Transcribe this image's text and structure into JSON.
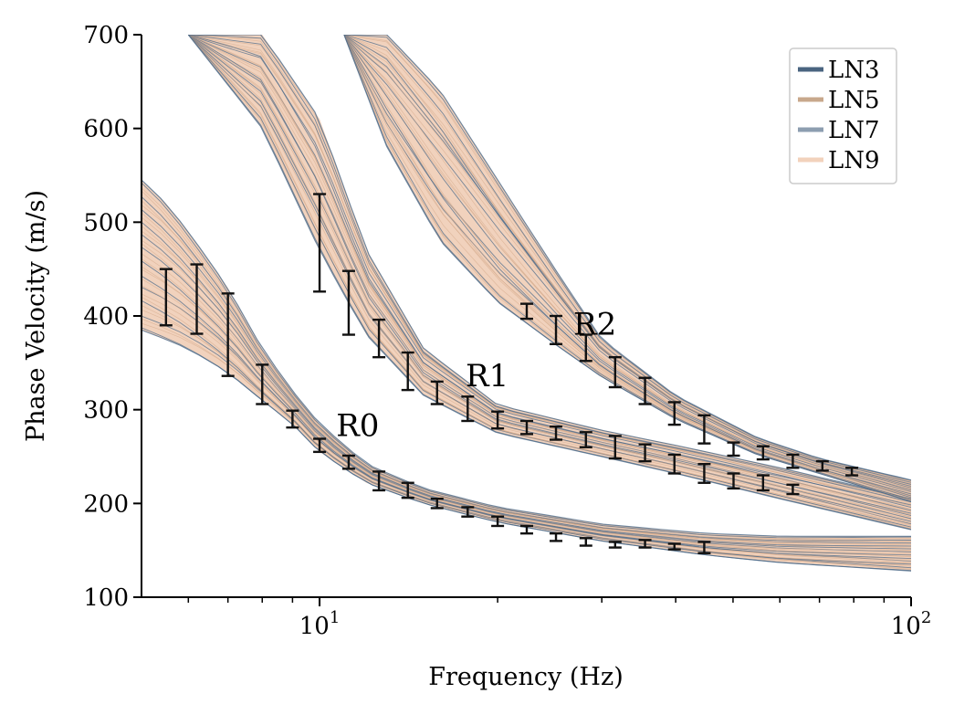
{
  "chart_data": {
    "type": "line",
    "xlabel": "Frequency (Hz)",
    "ylabel": "Phase Velocity (m/s)",
    "xscale": "log",
    "xlim": [
      5,
      100
    ],
    "ylim": [
      100,
      700
    ],
    "yticks": [
      {
        "value": 100,
        "label": "100"
      },
      {
        "value": 200,
        "label": "200"
      },
      {
        "value": 300,
        "label": "300"
      },
      {
        "value": 400,
        "label": "400"
      },
      {
        "value": 500,
        "label": "500"
      },
      {
        "value": 600,
        "label": "600"
      },
      {
        "value": 700,
        "label": "700"
      }
    ],
    "xticks_major": [
      {
        "value": 10,
        "base": "10",
        "exp": "1"
      },
      {
        "value": 100,
        "base": "10",
        "exp": "2"
      }
    ],
    "xticks_minor": [
      6,
      7,
      8,
      9,
      20,
      30,
      40,
      50,
      60,
      70,
      80,
      90
    ],
    "legend": {
      "placement": "top-right",
      "entries": [
        {
          "label": "LN3",
          "color": "#4a6480"
        },
        {
          "label": "LN5",
          "color": "#c8a88c"
        },
        {
          "label": "LN7",
          "color": "#8d9eb0"
        },
        {
          "label": "LN9",
          "color": "#f2d2bc"
        }
      ]
    },
    "colors": {
      "band_fill": "#f1d2bd",
      "blue_line": "#4e6b89",
      "tan_line": "#d4a888",
      "errorbar": "#111111"
    },
    "modes": [
      {
        "name": "R0",
        "label_at": {
          "f": 11.6,
          "v": 272
        },
        "band": [
          {
            "f": 5.0,
            "v": [
              385,
              545
            ]
          },
          {
            "f": 5.5,
            "v": [
              375,
              520
            ]
          },
          {
            "f": 6.0,
            "v": [
              365,
              490
            ]
          },
          {
            "f": 7.0,
            "v": [
              340,
              430
            ]
          },
          {
            "f": 8.0,
            "v": [
              310,
              365
            ]
          },
          {
            "f": 9.0,
            "v": [
              285,
              320
            ]
          },
          {
            "f": 10.0,
            "v": [
              255,
              285
            ]
          },
          {
            "f": 12.0,
            "v": [
              222,
              242
            ]
          },
          {
            "f": 15.0,
            "v": [
              200,
              216
            ]
          },
          {
            "f": 20.0,
            "v": [
              180,
              196
            ]
          },
          {
            "f": 30.0,
            "v": [
              160,
              178
            ]
          },
          {
            "f": 45.0,
            "v": [
              145,
              168
            ]
          },
          {
            "f": 60.0,
            "v": [
              137,
              165
            ]
          },
          {
            "f": 100.0,
            "v": [
              128,
              165
            ]
          }
        ],
        "observations": [
          {
            "f": 5.5,
            "v": 420,
            "err": 30
          },
          {
            "f": 6.2,
            "v": 418,
            "err": 37
          },
          {
            "f": 7.0,
            "v": 380,
            "err": 44
          },
          {
            "f": 8.0,
            "v": 327,
            "err": 21
          },
          {
            "f": 9.0,
            "v": 290,
            "err": 9
          },
          {
            "f": 10.0,
            "v": 262,
            "err": 7
          },
          {
            "f": 11.2,
            "v": 244,
            "err": 7
          },
          {
            "f": 12.6,
            "v": 224,
            "err": 10
          },
          {
            "f": 14.1,
            "v": 214,
            "err": 8
          },
          {
            "f": 15.8,
            "v": 200,
            "err": 5
          },
          {
            "f": 17.8,
            "v": 191,
            "err": 5
          },
          {
            "f": 20.0,
            "v": 181,
            "err": 5
          },
          {
            "f": 22.4,
            "v": 172,
            "err": 4
          },
          {
            "f": 25.1,
            "v": 164,
            "err": 4
          },
          {
            "f": 28.2,
            "v": 159,
            "err": 4
          },
          {
            "f": 31.6,
            "v": 156,
            "err": 3
          },
          {
            "f": 35.5,
            "v": 157,
            "err": 4
          },
          {
            "f": 39.8,
            "v": 154,
            "err": 3
          },
          {
            "f": 44.7,
            "v": 153,
            "err": 6
          }
        ]
      },
      {
        "name": "R1",
        "label_at": {
          "f": 19.2,
          "v": 325
        },
        "band": [
          {
            "f": 6.0,
            "v": [
              700,
              700
            ]
          },
          {
            "f": 8.0,
            "v": [
              600,
              700
            ]
          },
          {
            "f": 10.0,
            "v": [
              470,
              610
            ]
          },
          {
            "f": 12.0,
            "v": [
              380,
              470
            ]
          },
          {
            "f": 15.0,
            "v": [
              315,
              365
            ]
          },
          {
            "f": 20.0,
            "v": [
              275,
              305
            ]
          },
          {
            "f": 30.0,
            "v": [
              250,
              278
            ]
          },
          {
            "f": 40.0,
            "v": [
              232,
              262
            ]
          },
          {
            "f": 60.0,
            "v": [
              205,
              238
            ]
          },
          {
            "f": 100.0,
            "v": [
              172,
              205
            ]
          }
        ],
        "observations": [
          {
            "f": 10.0,
            "v": 478,
            "err": 52
          },
          {
            "f": 11.2,
            "v": 414,
            "err": 34
          },
          {
            "f": 12.6,
            "v": 376,
            "err": 20
          },
          {
            "f": 14.1,
            "v": 341,
            "err": 20
          },
          {
            "f": 15.8,
            "v": 318,
            "err": 12
          },
          {
            "f": 17.8,
            "v": 301,
            "err": 13
          },
          {
            "f": 20.0,
            "v": 289,
            "err": 9
          },
          {
            "f": 22.4,
            "v": 281,
            "err": 7
          },
          {
            "f": 25.1,
            "v": 275,
            "err": 7
          },
          {
            "f": 28.2,
            "v": 268,
            "err": 8
          },
          {
            "f": 31.6,
            "v": 260,
            "err": 12
          },
          {
            "f": 35.5,
            "v": 254,
            "err": 9
          },
          {
            "f": 39.8,
            "v": 242,
            "err": 10
          },
          {
            "f": 44.7,
            "v": 232,
            "err": 10
          },
          {
            "f": 50.1,
            "v": 224,
            "err": 8
          },
          {
            "f": 56.2,
            "v": 222,
            "err": 8
          },
          {
            "f": 63.1,
            "v": 215,
            "err": 5
          }
        ]
      },
      {
        "name": "R2",
        "label_at": {
          "f": 29.2,
          "v": 380
        },
        "band": [
          {
            "f": 11.0,
            "v": [
              700,
              700
            ]
          },
          {
            "f": 13.0,
            "v": [
              580,
              700
            ]
          },
          {
            "f": 16.0,
            "v": [
              480,
              640
            ]
          },
          {
            "f": 20.0,
            "v": [
              415,
              545
            ]
          },
          {
            "f": 25.0,
            "v": [
              370,
              450
            ]
          },
          {
            "f": 30.0,
            "v": [
              335,
              375
            ]
          },
          {
            "f": 40.0,
            "v": [
              290,
              315
            ]
          },
          {
            "f": 55.0,
            "v": [
              252,
              270
            ]
          },
          {
            "f": 70.0,
            "v": [
              232,
              248
            ]
          },
          {
            "f": 100.0,
            "v": [
              202,
              225
            ]
          }
        ],
        "observations": [
          {
            "f": 22.4,
            "v": 405,
            "err": 8
          },
          {
            "f": 25.1,
            "v": 385,
            "err": 15
          },
          {
            "f": 28.2,
            "v": 366,
            "err": 14
          },
          {
            "f": 31.6,
            "v": 340,
            "err": 16
          },
          {
            "f": 35.5,
            "v": 320,
            "err": 14
          },
          {
            "f": 39.8,
            "v": 296,
            "err": 12
          },
          {
            "f": 44.7,
            "v": 279,
            "err": 15
          },
          {
            "f": 50.1,
            "v": 258,
            "err": 7
          },
          {
            "f": 56.2,
            "v": 254,
            "err": 7
          },
          {
            "f": 63.1,
            "v": 245,
            "err": 7
          },
          {
            "f": 70.8,
            "v": 240,
            "err": 5
          },
          {
            "f": 79.4,
            "v": 234,
            "err": 4
          }
        ]
      }
    ]
  }
}
